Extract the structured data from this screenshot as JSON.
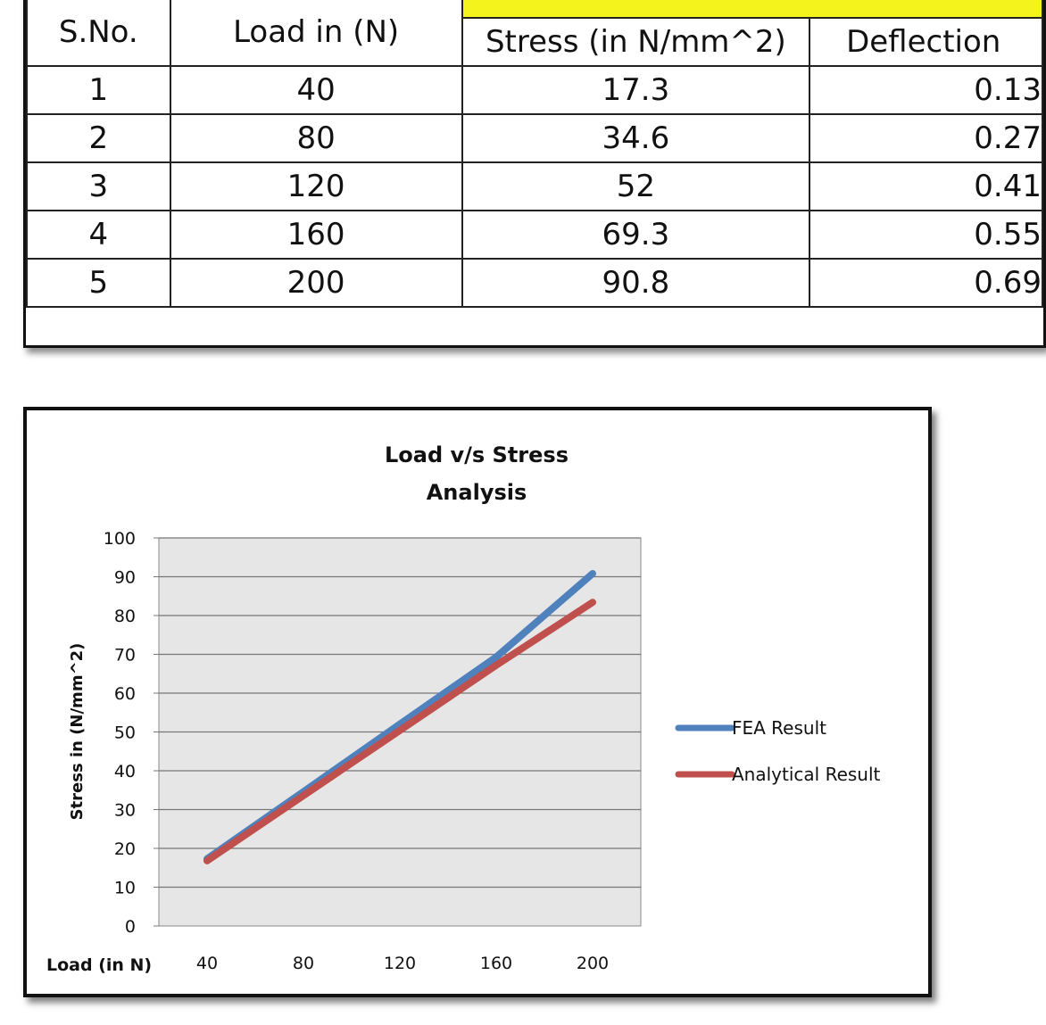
{
  "table": {
    "headers": {
      "sno": "S.No.",
      "load": "Load in (N)",
      "stress": "Stress (in N/mm^2)",
      "deflection": "Deflection"
    },
    "rows": [
      {
        "sno": "1",
        "load": "40",
        "stress": "17.3",
        "deflection": "0.13"
      },
      {
        "sno": "2",
        "load": "80",
        "stress": "34.6",
        "deflection": "0.27"
      },
      {
        "sno": "3",
        "load": "120",
        "stress": "52",
        "deflection": "0.41"
      },
      {
        "sno": "4",
        "load": "160",
        "stress": "69.3",
        "deflection": "0.55"
      },
      {
        "sno": "5",
        "load": "200",
        "stress": "90.8",
        "deflection": "0.69"
      }
    ]
  },
  "chart_data": {
    "type": "line",
    "title": "Load v/s Stress Analysis",
    "title_lines": [
      "Load v/s Stress",
      "Analysis"
    ],
    "xlabel": "Load (in N)",
    "ylabel": "Stress in (N/mm^2)",
    "categories": [
      "40",
      "80",
      "120",
      "160",
      "200"
    ],
    "yticks": [
      "0",
      "10",
      "20",
      "30",
      "40",
      "50",
      "60",
      "70",
      "80",
      "90",
      "100"
    ],
    "ylim": [
      0,
      100
    ],
    "grid": true,
    "legend_position": "right",
    "series": [
      {
        "name": "FEA Result",
        "color": "#4f81bd",
        "values": [
          17.3,
          34.6,
          52,
          69.3,
          90.8
        ]
      },
      {
        "name": "Analytical Result",
        "color": "#c0504d",
        "values": [
          16.8,
          33.6,
          50.4,
          67.2,
          83.4
        ]
      }
    ]
  }
}
